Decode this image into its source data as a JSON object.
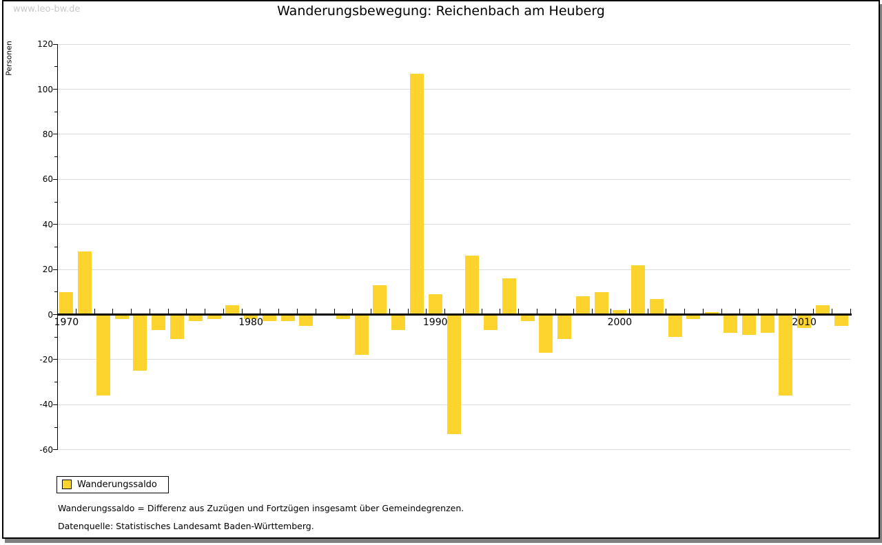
{
  "watermark": "www.leo-bw.de",
  "header": {
    "title": "Wanderungsbewegung: Reichenbach am Heuberg"
  },
  "legend": {
    "label": "Wanderungssaldo",
    "swatch_color": "#fcd42d"
  },
  "footnotes": {
    "definition": "Wanderungssaldo = Differenz aus Zuzügen und Fortzügen insgesamt über Gemeindegrenzen.",
    "source": "Datenquelle: Statistisches Landesamt Baden-Württemberg."
  },
  "colors": {
    "bar": "#fcd42d",
    "grid": "#dcdcdc",
    "axis": "#000000",
    "watermark": "#c9c9c9",
    "shadow": "#808080"
  },
  "chart_data": {
    "type": "bar",
    "title": "Wanderungsbewegung: Reichenbach am Heuberg",
    "xlabel": "",
    "ylabel": "Personen",
    "series_name": "Wanderungssaldo",
    "categories": [
      1970,
      1971,
      1972,
      1973,
      1974,
      1975,
      1976,
      1977,
      1978,
      1979,
      1980,
      1981,
      1982,
      1983,
      1984,
      1985,
      1986,
      1987,
      1988,
      1989,
      1990,
      1991,
      1992,
      1993,
      1994,
      1995,
      1996,
      1997,
      1998,
      1999,
      2000,
      2001,
      2002,
      2003,
      2004,
      2005,
      2006,
      2007,
      2008,
      2009,
      2010,
      2011,
      2012
    ],
    "values": [
      10,
      28,
      -36,
      -2,
      -25,
      -7,
      -11,
      -3,
      -2,
      4,
      -2,
      -3,
      -3,
      -5,
      0,
      -2,
      -18,
      13,
      -7,
      107,
      9,
      -53,
      26,
      -7,
      16,
      -3,
      -17,
      -11,
      8,
      10,
      2,
      22,
      7,
      -10,
      -2,
      1,
      -8,
      -9,
      -8,
      -36,
      -6,
      4,
      -5
    ],
    "ylim": [
      -60,
      120
    ],
    "ytick_interval": 20,
    "ytick_labels": [
      "120",
      "100",
      "80",
      "60",
      "40",
      "20",
      "0",
      "-20",
      "-40",
      "-60"
    ],
    "xtick_labels": [
      "1970",
      "1980",
      "1990",
      "2000",
      "2010"
    ],
    "grid": "horizontal",
    "legend_position": "bottom-left",
    "bar_color": "#fcd42d"
  }
}
